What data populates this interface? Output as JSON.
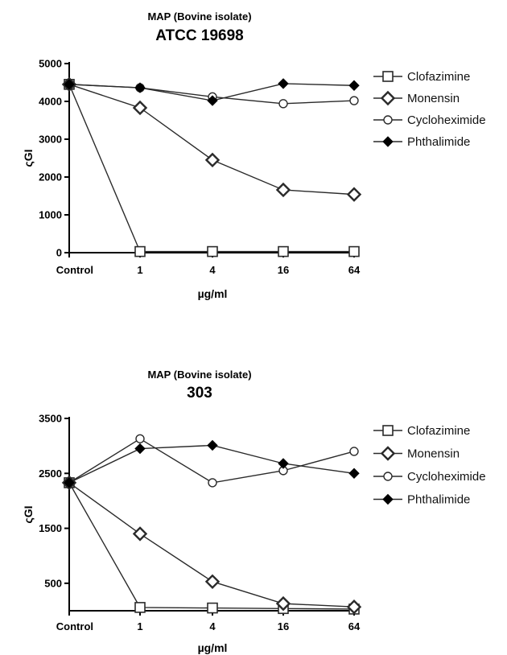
{
  "chart_data": [
    {
      "type": "line",
      "title": "ATCC 19698",
      "subtitle": "MAP (Bovine isolate)",
      "xlabel": "µg/ml",
      "ylabel": "ςGI",
      "categories": [
        "Control",
        "1",
        "4",
        "16",
        "64"
      ],
      "ylim": [
        0,
        5000
      ],
      "yticks": [
        0,
        1000,
        2000,
        3000,
        4000,
        5000
      ],
      "legend_position": "right",
      "grid": false,
      "series": [
        {
          "name": "Clofazimine",
          "marker": "square",
          "values": [
            4450,
            30,
            30,
            30,
            30
          ]
        },
        {
          "name": "Monensin",
          "marker": "diamond",
          "values": [
            4450,
            3830,
            2450,
            1660,
            1540
          ]
        },
        {
          "name": "Cycloheximide",
          "marker": "circle",
          "values": [
            4450,
            4360,
            4120,
            3940,
            4020
          ]
        },
        {
          "name": "Phthalimide",
          "marker": "filled-diamond",
          "values": [
            4450,
            4360,
            4020,
            4470,
            4420
          ]
        }
      ]
    },
    {
      "type": "line",
      "title": "303",
      "subtitle": "MAP (Bovine isolate)",
      "xlabel": "µg/ml",
      "ylabel": "ςGI",
      "categories": [
        "Control",
        "1",
        "4",
        "16",
        "64"
      ],
      "ylim": [
        0,
        3500
      ],
      "yticks": [
        500,
        1500,
        2500,
        3500
      ],
      "legend_position": "right",
      "grid": false,
      "series": [
        {
          "name": "Clofazimine",
          "marker": "square",
          "values": [
            2330,
            60,
            50,
            40,
            30
          ]
        },
        {
          "name": "Monensin",
          "marker": "diamond",
          "values": [
            2330,
            1400,
            530,
            130,
            70
          ]
        },
        {
          "name": "Cycloheximide",
          "marker": "circle",
          "values": [
            2330,
            3130,
            2330,
            2550,
            2900
          ]
        },
        {
          "name": "Phthalimide",
          "marker": "filled-diamond",
          "values": [
            2330,
            2950,
            3010,
            2680,
            2500
          ]
        }
      ]
    }
  ],
  "colors": {
    "line": "#2a2a2a",
    "axis": "#000000",
    "marker_fill_open": "#ffffff",
    "marker_fill_solid": "#000000"
  }
}
